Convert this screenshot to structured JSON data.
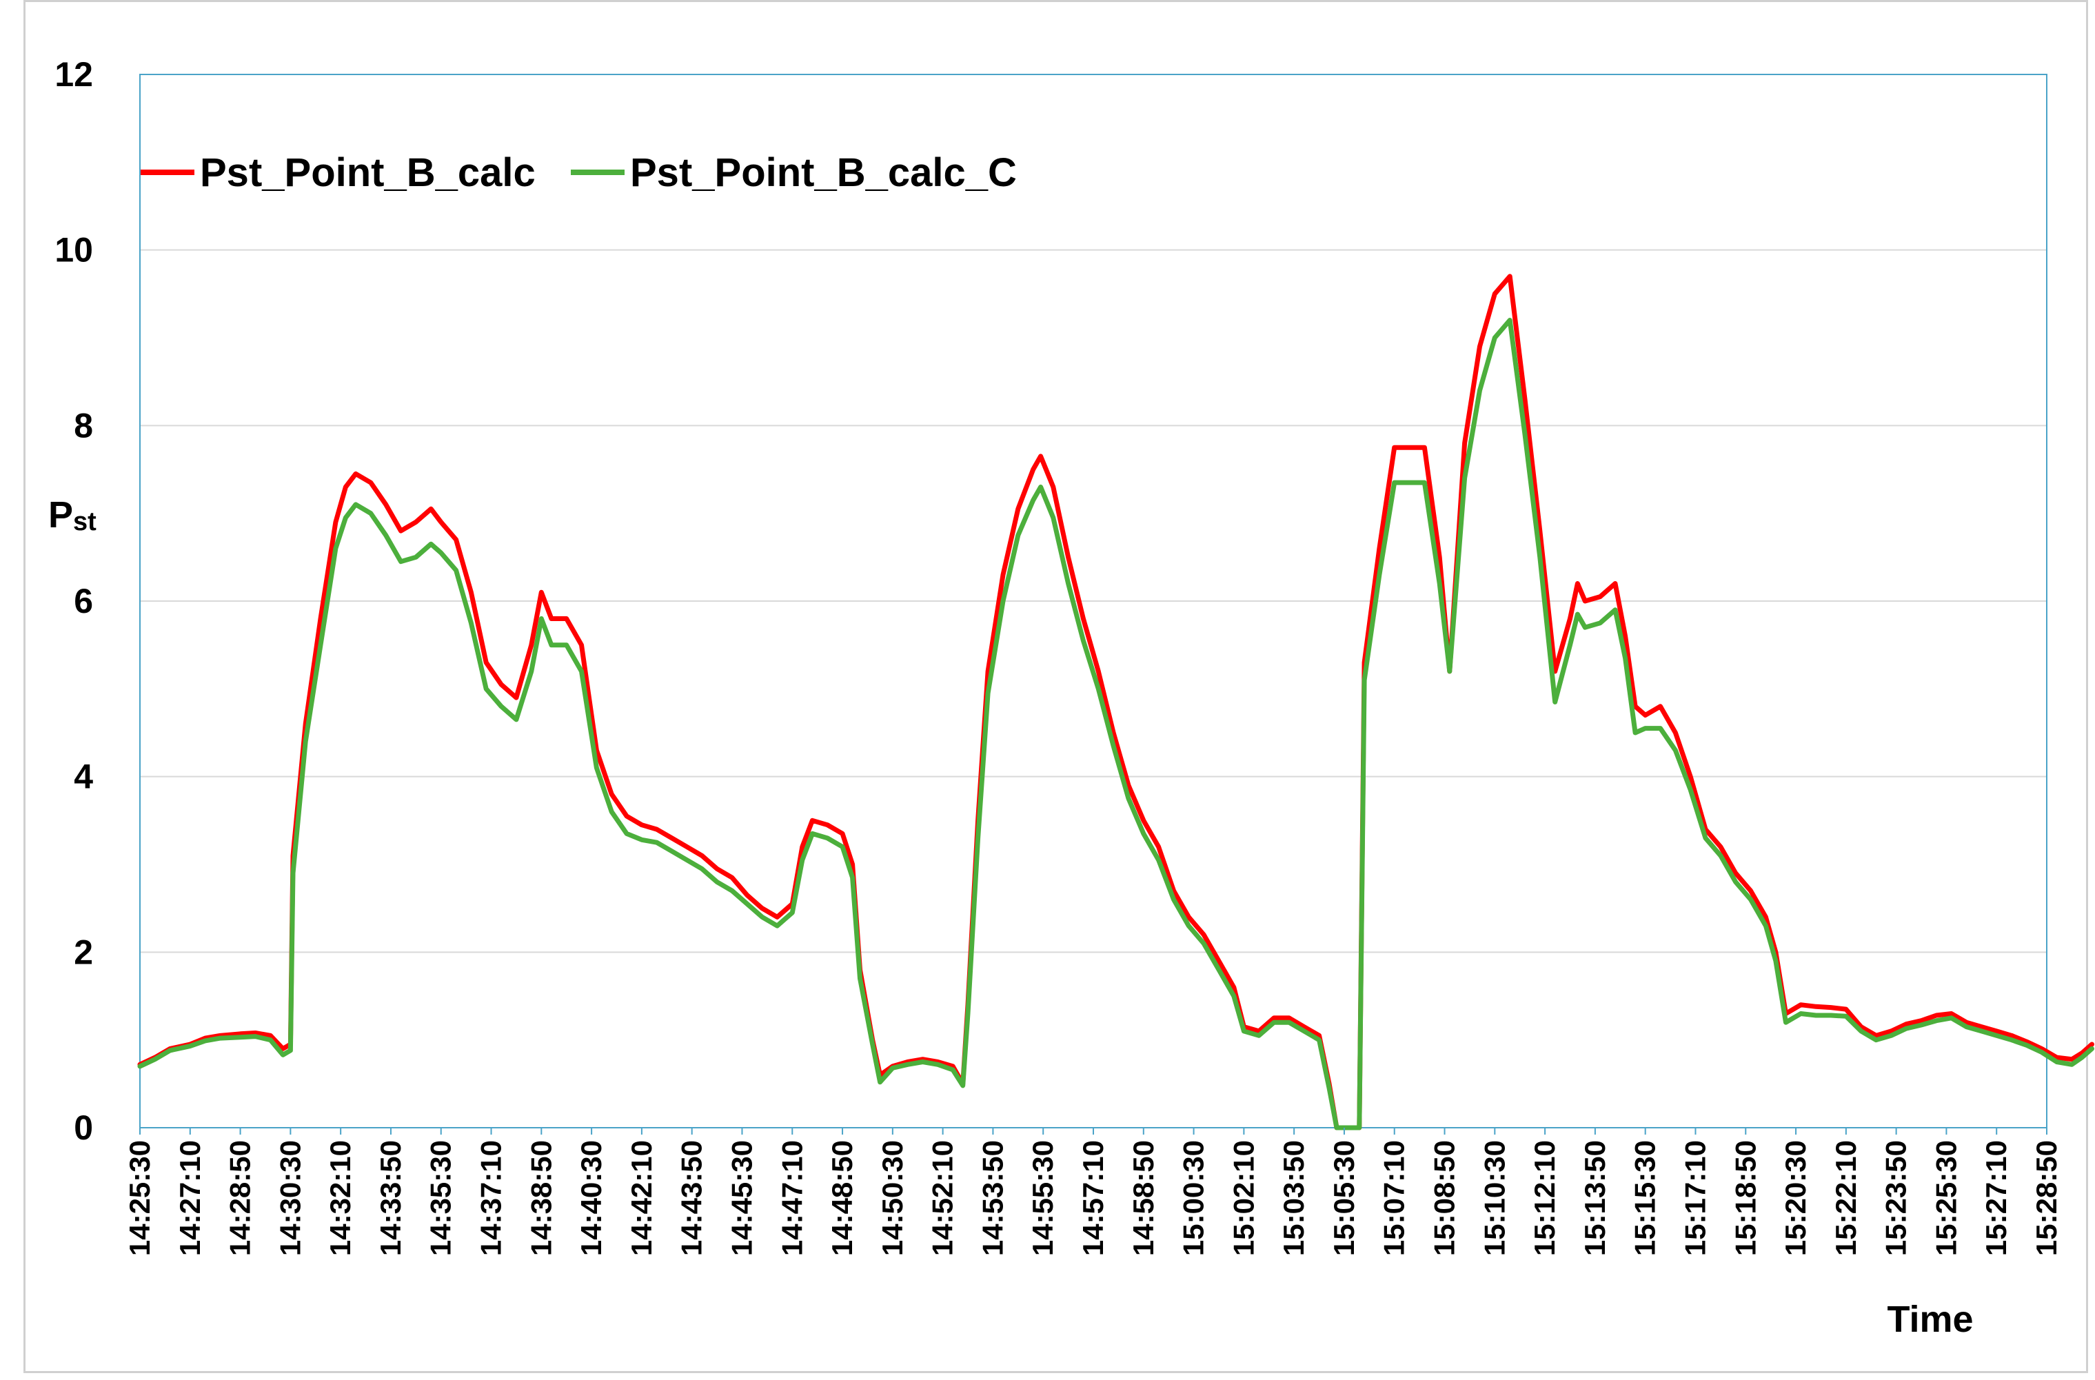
{
  "chart_data": {
    "type": "line",
    "xlabel": "Time",
    "ylabel_main": "P",
    "ylabel_sub": "st",
    "ylim": [
      0,
      12
    ],
    "yticks": [
      0,
      2,
      4,
      6,
      8,
      10,
      12
    ],
    "grid": true,
    "legend_position": "top-left",
    "x_tick_labels": [
      "14:25:30",
      "14:27:10",
      "14:28:50",
      "14:30:30",
      "14:32:10",
      "14:33:50",
      "14:35:30",
      "14:37:10",
      "14:38:50",
      "14:40:30",
      "14:42:10",
      "14:43:50",
      "14:45:30",
      "14:47:10",
      "14:48:50",
      "14:50:30",
      "14:52:10",
      "14:53:50",
      "14:55:30",
      "14:57:10",
      "14:58:50",
      "15:00:30",
      "15:02:10",
      "15:03:50",
      "15:05:30",
      "15:07:10",
      "15:08:50",
      "15:10:30",
      "15:12:10",
      "15:13:50",
      "15:15:30",
      "15:17:10",
      "15:18:50",
      "15:20:30",
      "15:22:10",
      "15:23:50",
      "15:25:30",
      "15:27:10",
      "15:28:50"
    ],
    "series": [
      {
        "name": "Pst_Point_B_calc",
        "color": "#ff0000",
        "points": [
          [
            0,
            0.72
          ],
          [
            0.3,
            0.8
          ],
          [
            0.6,
            0.9
          ],
          [
            1.0,
            0.95
          ],
          [
            1.3,
            1.02
          ],
          [
            1.6,
            1.05
          ],
          [
            2.0,
            1.07
          ],
          [
            2.3,
            1.08
          ],
          [
            2.6,
            1.05
          ],
          [
            2.85,
            0.9
          ],
          [
            3.0,
            0.95
          ],
          [
            3.05,
            3.1
          ],
          [
            3.3,
            4.6
          ],
          [
            3.6,
            5.8
          ],
          [
            3.9,
            6.9
          ],
          [
            4.1,
            7.3
          ],
          [
            4.3,
            7.45
          ],
          [
            4.6,
            7.35
          ],
          [
            4.9,
            7.1
          ],
          [
            5.2,
            6.8
          ],
          [
            5.5,
            6.9
          ],
          [
            5.8,
            7.05
          ],
          [
            6.0,
            6.9
          ],
          [
            6.3,
            6.7
          ],
          [
            6.6,
            6.1
          ],
          [
            6.9,
            5.3
          ],
          [
            7.2,
            5.05
          ],
          [
            7.5,
            4.9
          ],
          [
            7.8,
            5.5
          ],
          [
            8.0,
            6.1
          ],
          [
            8.2,
            5.8
          ],
          [
            8.5,
            5.8
          ],
          [
            8.8,
            5.5
          ],
          [
            9.1,
            4.3
          ],
          [
            9.4,
            3.8
          ],
          [
            9.7,
            3.55
          ],
          [
            10.0,
            3.45
          ],
          [
            10.3,
            3.4
          ],
          [
            10.6,
            3.3
          ],
          [
            10.9,
            3.2
          ],
          [
            11.2,
            3.1
          ],
          [
            11.5,
            2.95
          ],
          [
            11.8,
            2.85
          ],
          [
            12.1,
            2.65
          ],
          [
            12.4,
            2.5
          ],
          [
            12.7,
            2.4
          ],
          [
            13.0,
            2.55
          ],
          [
            13.2,
            3.2
          ],
          [
            13.4,
            3.5
          ],
          [
            13.7,
            3.45
          ],
          [
            14.0,
            3.35
          ],
          [
            14.2,
            3.0
          ],
          [
            14.35,
            1.8
          ],
          [
            14.6,
            1.0
          ],
          [
            14.75,
            0.6
          ],
          [
            15.0,
            0.7
          ],
          [
            15.3,
            0.75
          ],
          [
            15.6,
            0.78
          ],
          [
            15.9,
            0.75
          ],
          [
            16.2,
            0.7
          ],
          [
            16.4,
            0.5
          ],
          [
            16.5,
            1.4
          ],
          [
            16.7,
            3.5
          ],
          [
            16.9,
            5.2
          ],
          [
            17.2,
            6.3
          ],
          [
            17.5,
            7.05
          ],
          [
            17.8,
            7.5
          ],
          [
            17.95,
            7.65
          ],
          [
            18.2,
            7.3
          ],
          [
            18.5,
            6.5
          ],
          [
            18.8,
            5.8
          ],
          [
            19.1,
            5.2
          ],
          [
            19.4,
            4.5
          ],
          [
            19.7,
            3.9
          ],
          [
            20.0,
            3.5
          ],
          [
            20.3,
            3.2
          ],
          [
            20.6,
            2.7
          ],
          [
            20.9,
            2.4
          ],
          [
            21.2,
            2.2
          ],
          [
            21.5,
            1.9
          ],
          [
            21.8,
            1.6
          ],
          [
            22.0,
            1.15
          ],
          [
            22.3,
            1.1
          ],
          [
            22.6,
            1.25
          ],
          [
            22.9,
            1.25
          ],
          [
            23.2,
            1.15
          ],
          [
            23.5,
            1.05
          ],
          [
            23.7,
            0.5
          ],
          [
            23.85,
            0
          ],
          [
            24.3,
            0
          ],
          [
            24.4,
            5.3
          ],
          [
            24.7,
            6.6
          ],
          [
            25.0,
            7.75
          ],
          [
            25.3,
            7.75
          ],
          [
            25.6,
            7.75
          ],
          [
            25.9,
            6.5
          ],
          [
            26.1,
            5.2
          ],
          [
            26.4,
            7.8
          ],
          [
            26.7,
            8.9
          ],
          [
            27.0,
            9.5
          ],
          [
            27.3,
            9.7
          ],
          [
            27.6,
            8.3
          ],
          [
            27.9,
            6.8
          ],
          [
            28.2,
            5.2
          ],
          [
            28.5,
            5.8
          ],
          [
            28.65,
            6.2
          ],
          [
            28.8,
            6.0
          ],
          [
            29.1,
            6.05
          ],
          [
            29.4,
            6.2
          ],
          [
            29.6,
            5.6
          ],
          [
            29.8,
            4.8
          ],
          [
            30.0,
            4.7
          ],
          [
            30.3,
            4.8
          ],
          [
            30.6,
            4.5
          ],
          [
            30.9,
            4.0
          ],
          [
            31.2,
            3.4
          ],
          [
            31.5,
            3.2
          ],
          [
            31.8,
            2.9
          ],
          [
            32.1,
            2.7
          ],
          [
            32.4,
            2.4
          ],
          [
            32.6,
            2.0
          ],
          [
            32.8,
            1.3
          ],
          [
            33.1,
            1.4
          ],
          [
            33.4,
            1.38
          ],
          [
            33.7,
            1.37
          ],
          [
            34.0,
            1.35
          ],
          [
            34.3,
            1.15
          ],
          [
            34.6,
            1.05
          ],
          [
            34.9,
            1.1
          ],
          [
            35.2,
            1.18
          ],
          [
            35.5,
            1.22
          ],
          [
            35.8,
            1.28
          ],
          [
            36.1,
            1.3
          ],
          [
            36.4,
            1.2
          ],
          [
            36.7,
            1.15
          ],
          [
            37.0,
            1.1
          ],
          [
            37.3,
            1.05
          ],
          [
            37.6,
            0.98
          ],
          [
            37.9,
            0.9
          ],
          [
            38.2,
            0.8
          ],
          [
            38.5,
            0.78
          ],
          [
            38.7,
            0.85
          ],
          [
            38.9,
            0.95
          ]
        ]
      },
      {
        "name": "Pst_Point_B_calc_C",
        "color": "#4caf3c",
        "points": [
          [
            0,
            0.7
          ],
          [
            0.3,
            0.78
          ],
          [
            0.6,
            0.88
          ],
          [
            1.0,
            0.93
          ],
          [
            1.3,
            0.99
          ],
          [
            1.6,
            1.02
          ],
          [
            2.0,
            1.03
          ],
          [
            2.3,
            1.04
          ],
          [
            2.6,
            1.0
          ],
          [
            2.85,
            0.83
          ],
          [
            3.0,
            0.88
          ],
          [
            3.05,
            2.9
          ],
          [
            3.3,
            4.4
          ],
          [
            3.6,
            5.5
          ],
          [
            3.9,
            6.6
          ],
          [
            4.1,
            6.95
          ],
          [
            4.3,
            7.1
          ],
          [
            4.6,
            7.0
          ],
          [
            4.9,
            6.75
          ],
          [
            5.2,
            6.45
          ],
          [
            5.5,
            6.5
          ],
          [
            5.8,
            6.65
          ],
          [
            6.0,
            6.55
          ],
          [
            6.3,
            6.35
          ],
          [
            6.6,
            5.75
          ],
          [
            6.9,
            5.0
          ],
          [
            7.2,
            4.8
          ],
          [
            7.5,
            4.65
          ],
          [
            7.8,
            5.2
          ],
          [
            8.0,
            5.8
          ],
          [
            8.2,
            5.5
          ],
          [
            8.5,
            5.5
          ],
          [
            8.8,
            5.2
          ],
          [
            9.1,
            4.1
          ],
          [
            9.4,
            3.6
          ],
          [
            9.7,
            3.35
          ],
          [
            10.0,
            3.28
          ],
          [
            10.3,
            3.25
          ],
          [
            10.6,
            3.15
          ],
          [
            10.9,
            3.05
          ],
          [
            11.2,
            2.95
          ],
          [
            11.5,
            2.8
          ],
          [
            11.8,
            2.7
          ],
          [
            12.1,
            2.55
          ],
          [
            12.4,
            2.4
          ],
          [
            12.7,
            2.3
          ],
          [
            13.0,
            2.45
          ],
          [
            13.2,
            3.05
          ],
          [
            13.4,
            3.35
          ],
          [
            13.7,
            3.3
          ],
          [
            14.0,
            3.2
          ],
          [
            14.2,
            2.85
          ],
          [
            14.35,
            1.7
          ],
          [
            14.6,
            0.95
          ],
          [
            14.75,
            0.52
          ],
          [
            15.0,
            0.68
          ],
          [
            15.3,
            0.72
          ],
          [
            15.6,
            0.75
          ],
          [
            15.9,
            0.72
          ],
          [
            16.2,
            0.66
          ],
          [
            16.4,
            0.48
          ],
          [
            16.5,
            1.3
          ],
          [
            16.7,
            3.3
          ],
          [
            16.9,
            4.95
          ],
          [
            17.2,
            6.0
          ],
          [
            17.5,
            6.75
          ],
          [
            17.8,
            7.15
          ],
          [
            17.95,
            7.3
          ],
          [
            18.2,
            6.95
          ],
          [
            18.5,
            6.2
          ],
          [
            18.8,
            5.55
          ],
          [
            19.1,
            5.0
          ],
          [
            19.4,
            4.35
          ],
          [
            19.7,
            3.75
          ],
          [
            20.0,
            3.35
          ],
          [
            20.3,
            3.05
          ],
          [
            20.6,
            2.6
          ],
          [
            20.9,
            2.3
          ],
          [
            21.2,
            2.1
          ],
          [
            21.5,
            1.8
          ],
          [
            21.8,
            1.5
          ],
          [
            22.0,
            1.1
          ],
          [
            22.3,
            1.05
          ],
          [
            22.6,
            1.2
          ],
          [
            22.9,
            1.2
          ],
          [
            23.2,
            1.1
          ],
          [
            23.5,
            1.0
          ],
          [
            23.7,
            0.45
          ],
          [
            23.85,
            0
          ],
          [
            24.3,
            0
          ],
          [
            24.4,
            5.1
          ],
          [
            24.7,
            6.3
          ],
          [
            25.0,
            7.35
          ],
          [
            25.3,
            7.35
          ],
          [
            25.6,
            7.35
          ],
          [
            25.9,
            6.2
          ],
          [
            26.1,
            5.2
          ],
          [
            26.4,
            7.4
          ],
          [
            26.7,
            8.4
          ],
          [
            27.0,
            9.0
          ],
          [
            27.3,
            9.2
          ],
          [
            27.6,
            7.9
          ],
          [
            27.9,
            6.5
          ],
          [
            28.2,
            4.85
          ],
          [
            28.5,
            5.5
          ],
          [
            28.65,
            5.85
          ],
          [
            28.8,
            5.7
          ],
          [
            29.1,
            5.75
          ],
          [
            29.4,
            5.9
          ],
          [
            29.6,
            5.35
          ],
          [
            29.8,
            4.5
          ],
          [
            30.0,
            4.55
          ],
          [
            30.3,
            4.55
          ],
          [
            30.6,
            4.3
          ],
          [
            30.9,
            3.85
          ],
          [
            31.2,
            3.3
          ],
          [
            31.5,
            3.1
          ],
          [
            31.8,
            2.8
          ],
          [
            32.1,
            2.6
          ],
          [
            32.4,
            2.3
          ],
          [
            32.6,
            1.9
          ],
          [
            32.8,
            1.2
          ],
          [
            33.1,
            1.3
          ],
          [
            33.4,
            1.28
          ],
          [
            33.7,
            1.28
          ],
          [
            34.0,
            1.27
          ],
          [
            34.3,
            1.1
          ],
          [
            34.6,
            1.0
          ],
          [
            34.9,
            1.05
          ],
          [
            35.2,
            1.13
          ],
          [
            35.5,
            1.17
          ],
          [
            35.8,
            1.22
          ],
          [
            36.1,
            1.25
          ],
          [
            36.4,
            1.15
          ],
          [
            36.7,
            1.1
          ],
          [
            37.0,
            1.05
          ],
          [
            37.3,
            1.0
          ],
          [
            37.6,
            0.94
          ],
          [
            37.9,
            0.86
          ],
          [
            38.2,
            0.75
          ],
          [
            38.5,
            0.72
          ],
          [
            38.7,
            0.8
          ],
          [
            38.9,
            0.9
          ]
        ]
      }
    ]
  }
}
